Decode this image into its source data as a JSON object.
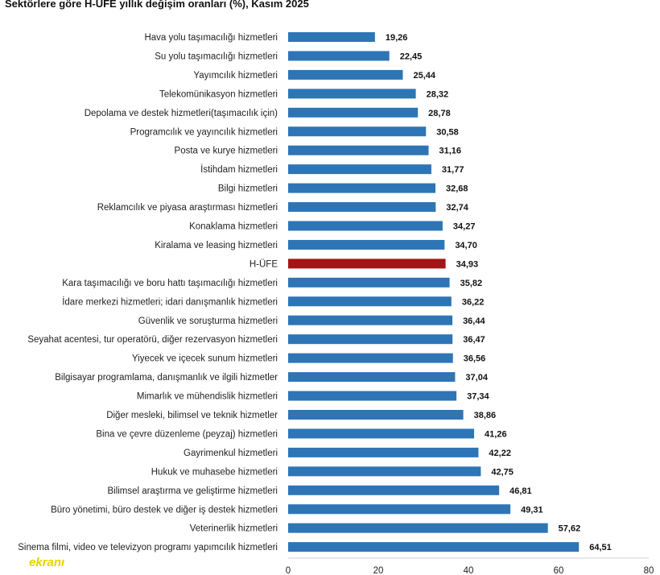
{
  "chart_data": {
    "type": "bar",
    "orientation": "horizontal",
    "title": "Sektörlere göre H-ÜFE yıllık değişim oranları (%), Kasım 2025",
    "categories": [
      "Hava yolu taşımacılığı hizmetleri",
      "Su yolu taşımacılığı hizmetleri",
      "Yayımcılık hizmetleri",
      "Telekomünikasyon hizmetleri",
      "Depolama ve destek hizmetleri(taşımacılık için)",
      "Programcılık ve yayıncılık hizmetleri",
      "Posta ve kurye hizmetleri",
      "İstihdam hizmetleri",
      "Bilgi hizmetleri",
      "Reklamcılık ve piyasa araştırması hizmetleri",
      "Konaklama hizmetleri",
      "Kiralama ve leasing hizmetleri",
      "H-ÜFE",
      "Kara taşımacılığı ve boru hattı taşımacılığı hizmetleri",
      "İdare merkezi hizmetleri; idari danışmanlık hizmetleri",
      "Güvenlik ve soruşturma hizmetleri",
      "Seyahat acentesi, tur operatörü, diğer rezervasyon hizmetleri",
      "Yiyecek ve içecek sunum hizmetleri",
      "Bilgisayar programlama, danışmanlık ve ilgili hizmetler",
      "Mimarlık ve mühendislik hizmetleri",
      "Diğer mesleki, bilimsel ve teknik hizmetler",
      "Bina ve çevre düzenleme (peyzaj) hizmetleri",
      "Gayrimenkul hizmetleri",
      "Hukuk ve muhasebe hizmetleri",
      "Bilimsel araştırma ve geliştirme hizmetleri",
      "Büro yönetimi, büro destek ve diğer iş destek hizmetleri",
      "Veterinerlik hizmetleri",
      "Sinema filmi, video ve televizyon programı yapımcılık hizmetleri"
    ],
    "values": [
      19.26,
      22.45,
      25.44,
      28.32,
      28.78,
      30.58,
      31.16,
      31.77,
      32.68,
      32.74,
      34.27,
      34.7,
      34.93,
      35.82,
      36.22,
      36.44,
      36.47,
      36.56,
      37.04,
      37.34,
      38.86,
      41.26,
      42.22,
      42.75,
      46.81,
      49.31,
      57.62,
      64.51
    ],
    "value_labels": [
      "19,26",
      "22,45",
      "25,44",
      "28,32",
      "28,78",
      "30,58",
      "31,16",
      "31,77",
      "32,68",
      "32,74",
      "34,27",
      "34,70",
      "34,93",
      "35,82",
      "36,22",
      "36,44",
      "36,47",
      "36,56",
      "37,04",
      "37,34",
      "38,86",
      "41,26",
      "42,22",
      "42,75",
      "46,81",
      "49,31",
      "57,62",
      "64,51"
    ],
    "highlight_category": "H-ÜFE",
    "xlim": [
      0,
      80
    ],
    "x_ticks": [
      "0",
      "20",
      "40",
      "60",
      "80"
    ],
    "grid": false,
    "colors": {
      "bar": "#2e75b6",
      "highlight": "#a31515"
    }
  },
  "watermark": {
    "text": "ekranı"
  }
}
